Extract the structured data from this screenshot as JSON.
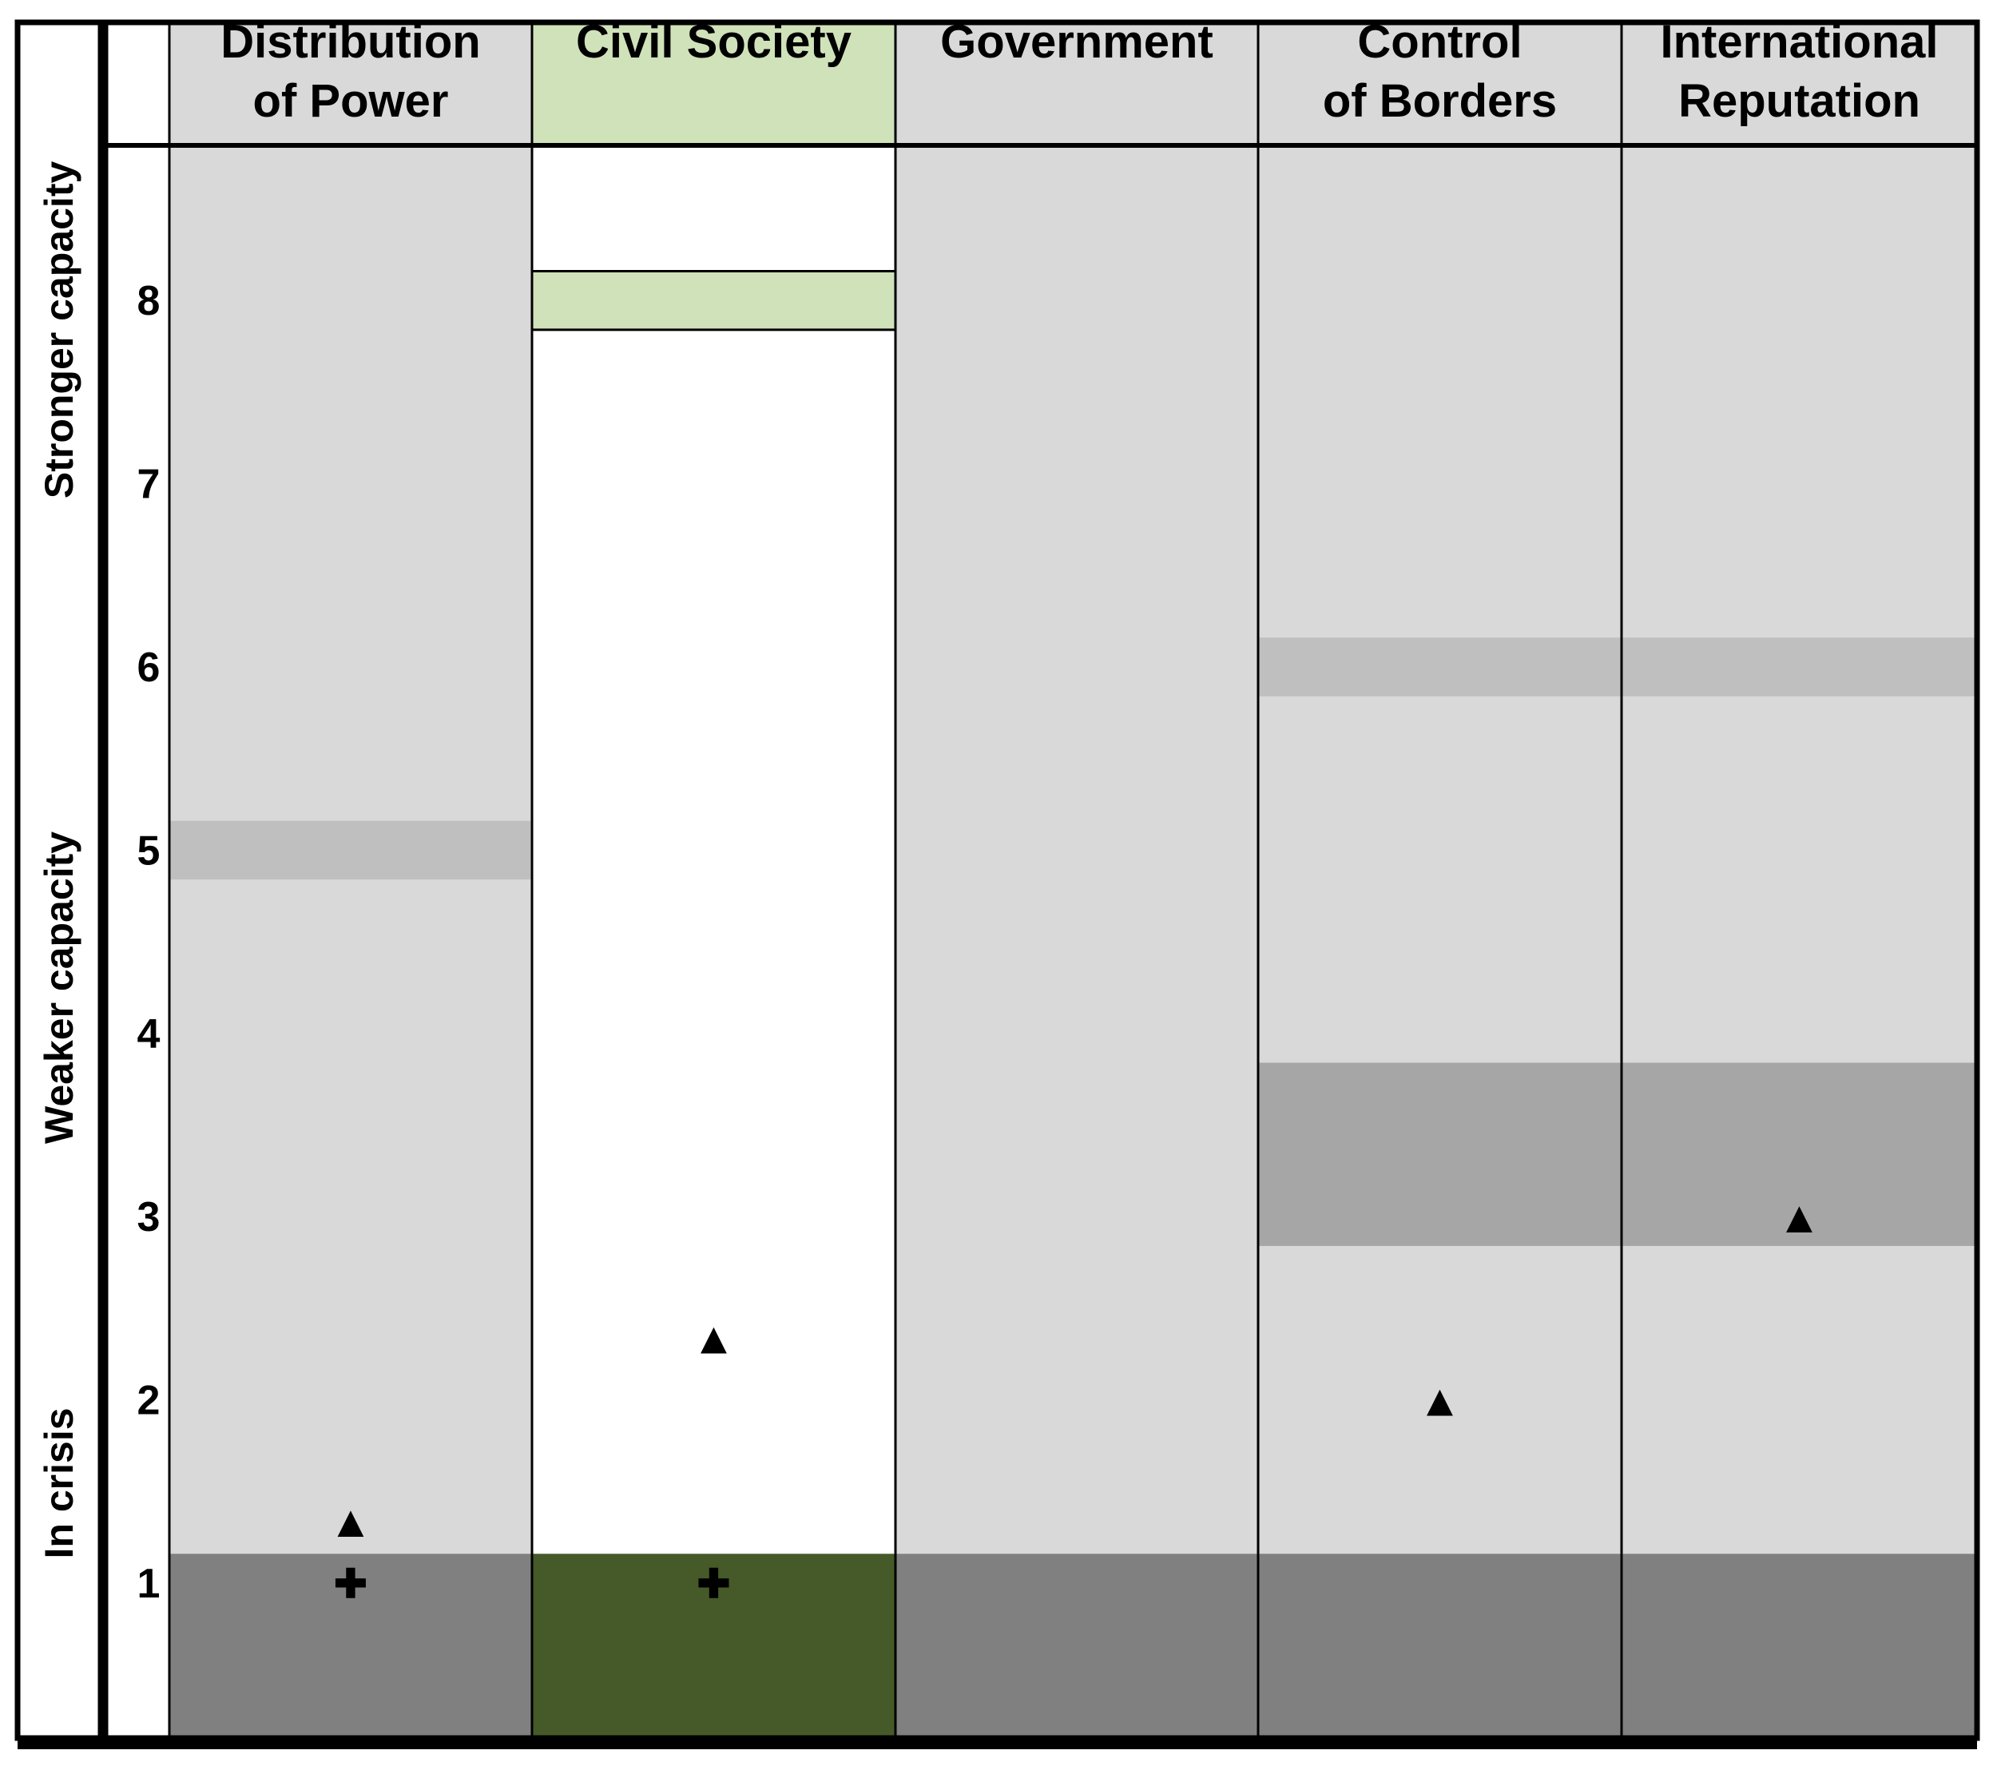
{
  "chart_data": {
    "type": "table",
    "columns": [
      {
        "header": [
          "Distribution",
          "of Power"
        ],
        "header_fill": "#d9d9d9",
        "body_fill": "#d9d9d9",
        "bottom_fill": "#808080",
        "bands": [
          {
            "from": 4.84,
            "to": 5.16,
            "color": "#bfbfbf"
          }
        ],
        "triangle": 1.34,
        "plus": 1.0
      },
      {
        "header": [
          "Civil Society"
        ],
        "header_fill": "#d0e2b9",
        "body_fill": "#ffffff",
        "bottom_fill": "#455a28",
        "bands": [
          {
            "from": 7.84,
            "to": 8.16,
            "color": "#d0e2b9",
            "outlined": true
          }
        ],
        "triangle": 2.34,
        "plus": 1.0
      },
      {
        "header": [
          "Government"
        ],
        "header_fill": "#d9d9d9",
        "body_fill": "#d9d9d9",
        "bottom_fill": "#808080",
        "bands": [],
        "triangle": null,
        "plus": null
      },
      {
        "header": [
          "Control",
          "of Borders"
        ],
        "header_fill": "#d9d9d9",
        "body_fill": "#d9d9d9",
        "bottom_fill": "#808080",
        "bands": [
          {
            "from": 5.84,
            "to": 6.16,
            "color": "#bfbfbf"
          },
          {
            "from": 2.84,
            "to": 3.84,
            "color": "#a6a6a6"
          }
        ],
        "triangle": 2.0,
        "plus": null
      },
      {
        "header": [
          "International",
          "Reputation"
        ],
        "header_fill": "#d9d9d9",
        "body_fill": "#d9d9d9",
        "bottom_fill": "#808080",
        "bands": [
          {
            "from": 5.84,
            "to": 6.16,
            "color": "#bfbfbf"
          },
          {
            "from": 2.84,
            "to": 3.84,
            "color": "#a6a6a6"
          }
        ],
        "triangle": 3.0,
        "plus": null
      }
    ],
    "y_ticks": [
      "1",
      "2",
      "3",
      "4",
      "5",
      "6",
      "7",
      "8"
    ],
    "y_range": [
      0,
      8.84
    ],
    "bottom_band_top": 1.16,
    "side_labels": [
      {
        "text": "Stronger capacity",
        "from": 6.84,
        "to": 8.84
      },
      {
        "text": "Weaker capacity",
        "from": 3.25,
        "to": 5.25
      },
      {
        "text": "In crisis",
        "from": 0.84,
        "to": 2.25
      }
    ],
    "markers": {
      "triangle": "▲",
      "plus": "✚"
    },
    "colors": {
      "border": "#000000",
      "marker": "#000000"
    }
  }
}
